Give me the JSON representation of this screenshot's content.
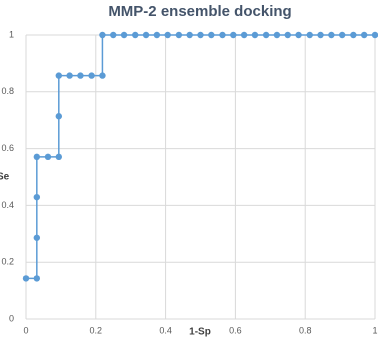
{
  "chart_data": {
    "type": "line",
    "title": "MMP-2 ensemble docking",
    "x_label": "1-Sp",
    "y_label": "Se",
    "x": [
      0,
      0.031,
      0.031,
      0.031,
      0.031,
      0.063,
      0.094,
      0.094,
      0.094,
      0.125,
      0.156,
      0.188,
      0.219,
      0.219,
      0.25,
      0.281,
      0.313,
      0.344,
      0.375,
      0.406,
      0.438,
      0.469,
      0.5,
      0.531,
      0.563,
      0.594,
      0.625,
      0.656,
      0.688,
      0.719,
      0.75,
      0.781,
      0.813,
      0.844,
      0.875,
      0.906,
      0.938,
      0.969,
      1
    ],
    "series": [
      {
        "color": "#5b9bd5",
        "values": [
          0.143,
          0.143,
          0.286,
          0.429,
          0.571,
          0.571,
          0.571,
          0.714,
          0.857,
          0.857,
          0.857,
          0.857,
          0.857,
          1,
          1,
          1,
          1,
          1,
          1,
          1,
          1,
          1,
          1,
          1,
          1,
          1,
          1,
          1,
          1,
          1,
          1,
          1,
          1,
          1,
          1,
          1,
          1,
          1,
          1
        ]
      }
    ],
    "xlim": [
      0,
      1
    ],
    "ylim": [
      0,
      1
    ],
    "xticks": [
      0,
      0.2,
      0.4,
      0.6,
      0.8,
      1
    ],
    "yticks": [
      0,
      0.2,
      0.4,
      0.6,
      0.8,
      1
    ],
    "grid": true
  }
}
